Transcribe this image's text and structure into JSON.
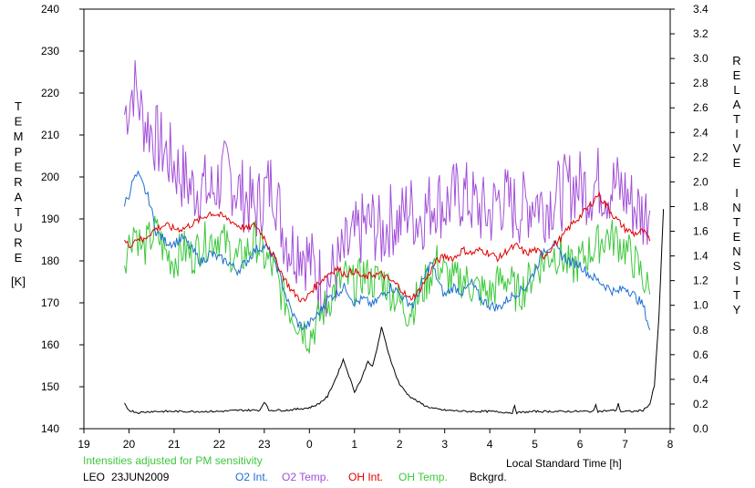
{
  "chart_data": {
    "type": "line",
    "station": "LEO",
    "date": "23JUN2009",
    "note": "Intensities adjusted for PM sensitivity",
    "xlabel": "Local Standard Time [h]",
    "ylabel_left_letters": [
      "T",
      "E",
      "M",
      "P",
      "E",
      "R",
      "A",
      "T",
      "U",
      "R",
      "E"
    ],
    "ylabel_left_unit": "[K]",
    "ylabel_right_letters": [
      "R",
      "E",
      "L",
      "A",
      "T",
      "I",
      "V",
      "E",
      "I",
      "N",
      "T",
      "E",
      "N",
      "S",
      "I",
      "T",
      "Y"
    ],
    "x_ticks": [
      "19",
      "20",
      "21",
      "22",
      "23",
      "0",
      "1",
      "2",
      "3",
      "4",
      "5",
      "6",
      "7",
      "8"
    ],
    "y_left_ticks": [
      "140",
      "150",
      "160",
      "170",
      "180",
      "190",
      "200",
      "210",
      "220",
      "230",
      "240"
    ],
    "y_right_ticks": [
      "0.0",
      "0.2",
      "0.4",
      "0.6",
      "0.8",
      "1.0",
      "1.2",
      "1.4",
      "1.6",
      "1.8",
      "2.0",
      "2.2",
      "2.4",
      "2.6",
      "2.8",
      "3.0",
      "3.2",
      "3.4"
    ],
    "xlim": [
      19,
      32
    ],
    "ylim_left": [
      140,
      240
    ],
    "ylim_right": [
      0,
      3.4
    ],
    "grid": false,
    "legend": "bottom",
    "series": [
      {
        "name": "O2 Int.",
        "axis": "right",
        "color": "#1e6fd0",
        "x": [
          19.9,
          20.0,
          20.1,
          20.2,
          20.3,
          20.45,
          20.6,
          20.8,
          21.0,
          21.2,
          21.4,
          21.6,
          21.8,
          22.0,
          22.2,
          22.4,
          22.6,
          22.8,
          23.0,
          23.2,
          23.4,
          23.5,
          23.6,
          23.75,
          23.9,
          24.0,
          24.2,
          24.4,
          24.6,
          24.8,
          25.0,
          25.2,
          25.4,
          25.6,
          25.8,
          26.0,
          26.1,
          26.3,
          26.5,
          26.7,
          26.9,
          27.0,
          27.2,
          27.4,
          27.6,
          27.8,
          28.0,
          28.2,
          28.4,
          28.6,
          28.8,
          29.0,
          29.2,
          29.4,
          29.6,
          29.8,
          30.0,
          30.2,
          30.4,
          30.6,
          30.8,
          31.0,
          31.2,
          31.4,
          31.55
        ],
        "y": [
          1.83,
          1.9,
          2.02,
          2.05,
          1.98,
          1.85,
          1.6,
          1.52,
          1.5,
          1.55,
          1.45,
          1.35,
          1.42,
          1.38,
          1.35,
          1.28,
          1.35,
          1.45,
          1.48,
          1.4,
          1.18,
          1.05,
          0.95,
          0.85,
          0.82,
          0.85,
          0.93,
          1.05,
          1.1,
          1.15,
          1.02,
          1.05,
          1.0,
          1.08,
          1.15,
          1.1,
          1.05,
          1.0,
          1.18,
          1.35,
          1.15,
          1.08,
          1.15,
          1.1,
          1.18,
          1.05,
          1.0,
          0.98,
          1.05,
          1.1,
          1.15,
          1.28,
          1.45,
          1.5,
          1.4,
          1.35,
          1.33,
          1.25,
          1.2,
          1.15,
          1.1,
          1.15,
          1.08,
          1.0,
          0.8
        ]
      },
      {
        "name": "O2 Temp.",
        "axis": "left",
        "color": "#a24fd8",
        "x": [
          19.9,
          20.0,
          20.1,
          20.2,
          20.3,
          20.45,
          20.6,
          20.8,
          21.0,
          21.2,
          21.4,
          21.6,
          21.8,
          22.0,
          22.2,
          22.4,
          22.6,
          22.8,
          23.0,
          23.2,
          23.4,
          23.6,
          23.8,
          24.0,
          24.2,
          24.4,
          24.6,
          24.8,
          25.0,
          25.2,
          25.4,
          25.6,
          25.8,
          26.0,
          26.2,
          26.4,
          26.6,
          26.8,
          27.0,
          27.2,
          27.4,
          27.6,
          27.8,
          28.0,
          28.2,
          28.4,
          28.6,
          28.8,
          29.0,
          29.2,
          29.4,
          29.6,
          29.8,
          30.0,
          30.2,
          30.4,
          30.6,
          30.8,
          31.0,
          31.2,
          31.4,
          31.55
        ],
        "y": [
          215,
          218,
          222,
          219,
          214,
          212,
          209,
          206,
          203,
          200,
          197,
          198,
          196,
          199,
          201,
          197,
          195,
          192,
          196,
          199,
          188,
          183,
          184,
          180,
          176,
          175,
          178,
          182,
          185,
          188,
          189,
          186,
          190,
          189,
          193,
          190,
          192,
          195,
          193,
          195,
          196,
          194,
          192,
          191,
          195,
          194,
          192,
          193,
          195,
          193,
          195,
          196,
          198,
          198,
          197,
          199,
          197,
          198,
          196,
          193,
          191,
          192
        ]
      },
      {
        "name": "OH Int.",
        "axis": "right",
        "color": "#e00000",
        "x": [
          19.9,
          20.0,
          20.1,
          20.2,
          20.3,
          20.45,
          20.6,
          20.8,
          21.0,
          21.2,
          21.4,
          21.6,
          21.8,
          22.0,
          22.2,
          22.4,
          22.6,
          22.8,
          23.0,
          23.2,
          23.4,
          23.6,
          23.8,
          23.9,
          24.0,
          24.2,
          24.4,
          24.6,
          24.8,
          25.0,
          25.2,
          25.4,
          25.6,
          25.8,
          26.0,
          26.2,
          26.4,
          26.6,
          26.8,
          27.0,
          27.2,
          27.4,
          27.6,
          27.8,
          28.0,
          28.2,
          28.4,
          28.6,
          28.8,
          29.0,
          29.2,
          29.4,
          29.6,
          29.8,
          30.0,
          30.2,
          30.4,
          30.6,
          30.8,
          31.0,
          31.2,
          31.4,
          31.55
        ],
        "y": [
          1.52,
          1.48,
          1.52,
          1.55,
          1.52,
          1.58,
          1.62,
          1.65,
          1.62,
          1.62,
          1.66,
          1.7,
          1.75,
          1.73,
          1.7,
          1.65,
          1.62,
          1.65,
          1.55,
          1.4,
          1.25,
          1.12,
          1.05,
          1.03,
          1.1,
          1.18,
          1.25,
          1.3,
          1.25,
          1.28,
          1.22,
          1.25,
          1.25,
          1.2,
          1.15,
          1.05,
          1.1,
          1.22,
          1.35,
          1.4,
          1.38,
          1.45,
          1.42,
          1.45,
          1.42,
          1.38,
          1.45,
          1.48,
          1.42,
          1.45,
          1.4,
          1.48,
          1.55,
          1.65,
          1.72,
          1.8,
          1.9,
          1.8,
          1.7,
          1.62,
          1.58,
          1.6,
          1.52
        ]
      },
      {
        "name": "OH Temp.",
        "axis": "left",
        "color": "#3cc83c",
        "x": [
          19.9,
          20.0,
          20.1,
          20.2,
          20.3,
          20.45,
          20.6,
          20.8,
          21.0,
          21.2,
          21.4,
          21.6,
          21.8,
          22.0,
          22.2,
          22.4,
          22.6,
          22.8,
          23.0,
          23.2,
          23.4,
          23.6,
          23.8,
          24.0,
          24.2,
          24.4,
          24.6,
          24.8,
          25.0,
          25.2,
          25.4,
          25.6,
          25.8,
          26.0,
          26.2,
          26.4,
          26.6,
          26.8,
          27.0,
          27.2,
          27.4,
          27.6,
          27.8,
          28.0,
          28.2,
          28.4,
          28.6,
          28.8,
          29.0,
          29.2,
          29.4,
          29.6,
          29.8,
          30.0,
          30.2,
          30.4,
          30.6,
          30.8,
          31.0,
          31.2,
          31.4,
          31.55
        ],
        "y": [
          181,
          184,
          188,
          186,
          182,
          185,
          187,
          182,
          180,
          183,
          181,
          184,
          185,
          186,
          183,
          180,
          182,
          185,
          181,
          178,
          172,
          168,
          165,
          162,
          166,
          170,
          174,
          176,
          174,
          177,
          175,
          176,
          173,
          170,
          168,
          171,
          175,
          180,
          177,
          175,
          176,
          174,
          173,
          172,
          175,
          176,
          172,
          174,
          178,
          180,
          182,
          181,
          178,
          180,
          182,
          184,
          186,
          185,
          183,
          180,
          176,
          172
        ]
      },
      {
        "name": "Bckgrd.",
        "axis": "right",
        "color": "#000000",
        "x": [
          19.9,
          20.0,
          20.2,
          20.5,
          21.0,
          21.5,
          22.0,
          22.5,
          22.9,
          23.0,
          23.1,
          23.5,
          24.0,
          24.2,
          24.4,
          24.6,
          24.75,
          24.85,
          25.0,
          25.15,
          25.3,
          25.4,
          25.5,
          25.6,
          25.75,
          25.9,
          26.0,
          26.2,
          26.4,
          26.6,
          26.8,
          27.0,
          27.5,
          28.0,
          28.5,
          28.55,
          28.6,
          29.0,
          29.5,
          30.0,
          30.3,
          30.35,
          30.4,
          30.8,
          30.85,
          30.9,
          31.2,
          31.4,
          31.55,
          31.65,
          31.75,
          31.85
        ],
        "y": [
          0.2,
          0.15,
          0.13,
          0.14,
          0.14,
          0.14,
          0.14,
          0.15,
          0.15,
          0.22,
          0.15,
          0.15,
          0.17,
          0.2,
          0.26,
          0.42,
          0.56,
          0.46,
          0.3,
          0.4,
          0.55,
          0.5,
          0.65,
          0.82,
          0.62,
          0.45,
          0.36,
          0.27,
          0.22,
          0.18,
          0.16,
          0.15,
          0.14,
          0.14,
          0.13,
          0.18,
          0.13,
          0.14,
          0.14,
          0.14,
          0.14,
          0.2,
          0.14,
          0.15,
          0.2,
          0.14,
          0.14,
          0.15,
          0.2,
          0.35,
          0.9,
          1.78
        ]
      }
    ]
  }
}
